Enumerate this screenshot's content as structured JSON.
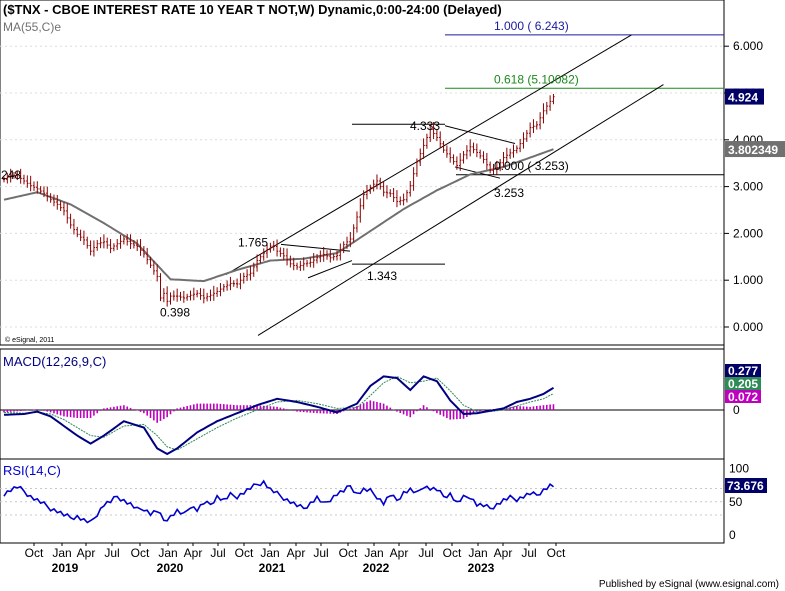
{
  "chart_data": [
    {
      "type": "candlestick",
      "panel": "price",
      "title": "($TNX - CBOE INTEREST RATE 10 YEAR T NOT,W) Dynamic,0:00-24:00 (Delayed)",
      "indicator_label": "MA(55,C)e",
      "ylim": [
        -0.6,
        7.0
      ],
      "y_ticks": [
        "0.000",
        "1.000",
        "2.000",
        "3.000",
        "4.000",
        "5.000",
        "6.000"
      ],
      "price_path": [
        [
          0,
          3.15
        ],
        [
          2,
          3.24
        ],
        [
          4,
          3.23
        ],
        [
          6,
          3.12
        ],
        [
          8,
          3.02
        ],
        [
          10,
          2.95
        ],
        [
          12,
          2.86
        ],
        [
          14,
          2.72
        ],
        [
          16,
          2.62
        ],
        [
          18,
          2.48
        ],
        [
          20,
          2.18
        ],
        [
          22,
          1.98
        ],
        [
          24,
          1.86
        ],
        [
          26,
          1.62
        ],
        [
          28,
          1.78
        ],
        [
          30,
          1.82
        ],
        [
          32,
          1.68
        ],
        [
          34,
          1.78
        ],
        [
          36,
          1.88
        ],
        [
          38,
          1.78
        ],
        [
          40,
          1.72
        ],
        [
          42,
          1.56
        ],
        [
          44,
          1.32
        ],
        [
          46,
          1.08
        ],
        [
          47,
          0.62
        ],
        [
          48,
          0.72
        ],
        [
          49,
          0.55
        ],
        [
          50,
          0.66
        ],
        [
          52,
          0.66
        ],
        [
          54,
          0.62
        ],
        [
          56,
          0.68
        ],
        [
          58,
          0.72
        ],
        [
          60,
          0.62
        ],
        [
          62,
          0.68
        ],
        [
          64,
          0.76
        ],
        [
          66,
          0.86
        ],
        [
          68,
          0.93
        ],
        [
          70,
          0.92
        ],
        [
          72,
          1.08
        ],
        [
          74,
          1.15
        ],
        [
          76,
          1.42
        ],
        [
          78,
          1.58
        ],
        [
          80,
          1.73
        ],
        [
          81,
          1.72
        ],
        [
          82,
          1.62
        ],
        [
          84,
          1.52
        ],
        [
          86,
          1.35
        ],
        [
          88,
          1.28
        ],
        [
          90,
          1.35
        ],
        [
          92,
          1.38
        ],
        [
          94,
          1.48
        ],
        [
          96,
          1.55
        ],
        [
          98,
          1.48
        ],
        [
          100,
          1.53
        ],
        [
          102,
          1.76
        ],
        [
          104,
          1.88
        ],
        [
          106,
          2.35
        ],
        [
          108,
          2.83
        ],
        [
          110,
          2.98
        ],
        [
          112,
          3.12
        ],
        [
          114,
          2.88
        ],
        [
          116,
          2.85
        ],
        [
          118,
          2.68
        ],
        [
          120,
          2.72
        ],
        [
          122,
          3.02
        ],
        [
          124,
          3.53
        ],
        [
          126,
          3.88
        ],
        [
          128,
          4.22
        ],
        [
          130,
          4.05
        ],
        [
          132,
          3.78
        ],
        [
          134,
          3.62
        ],
        [
          136,
          3.45
        ],
        [
          138,
          3.68
        ],
        [
          140,
          3.85
        ],
        [
          142,
          3.73
        ],
        [
          144,
          3.58
        ],
        [
          146,
          3.35
        ],
        [
          148,
          3.4
        ],
        [
          150,
          3.62
        ],
        [
          152,
          3.72
        ],
        [
          154,
          3.82
        ],
        [
          156,
          4.02
        ],
        [
          158,
          4.26
        ],
        [
          160,
          4.32
        ],
        [
          162,
          4.62
        ],
        [
          164,
          4.82
        ],
        [
          165,
          4.92
        ]
      ],
      "series": [
        {
          "name": "MA(55,C)e",
          "values": [
            [
              0,
              2.72
            ],
            [
              10,
              2.88
            ],
            [
              20,
              2.62
            ],
            [
              30,
              2.22
            ],
            [
              40,
              1.78
            ],
            [
              50,
              1.02
            ],
            [
              60,
              0.98
            ],
            [
              70,
              1.22
            ],
            [
              80,
              1.42
            ],
            [
              90,
              1.46
            ],
            [
              100,
              1.58
            ],
            [
              110,
              2.05
            ],
            [
              120,
              2.52
            ],
            [
              130,
              2.92
            ],
            [
              140,
              3.26
            ],
            [
              150,
              3.42
            ],
            [
              158,
              3.62
            ],
            [
              165,
              3.8
            ]
          ]
        }
      ],
      "annotations": [
        {
          "label": "1.000 ( 6.243)",
          "y": 6.243,
          "color": "#1a1aa0"
        },
        {
          "label": "0.618 (5.10082)",
          "y": 5.10082,
          "color": "#1a8a1a"
        },
        {
          "label": "0.000 ( 3.253)",
          "y": 3.253,
          "color": "#000000"
        },
        {
          "label": "4.333",
          "y": 4.333
        },
        {
          "label": "3.253",
          "y": 3.253
        },
        {
          "label": "1.765",
          "y": 1.765
        },
        {
          "label": "1.343",
          "y": 1.343
        },
        {
          "label": "0.398",
          "y": 0.398
        },
        {
          "label": "248",
          "y": 3.248
        }
      ],
      "value_boxes": [
        {
          "label": "4.924",
          "y": 4.924,
          "bg": "#000066",
          "fg": "#ffffff"
        },
        {
          "label": "3.802349",
          "y": 3.802349,
          "bg": "#707070",
          "fg": "#ffffff"
        }
      ],
      "credit": "© eSignal, 2011"
    },
    {
      "type": "line",
      "panel": "macd",
      "title": "MACD(12,26,9,C)",
      "ylim": [
        -0.65,
        0.95
      ],
      "macd": [
        [
          0,
          -0.06
        ],
        [
          6,
          -0.05
        ],
        [
          10,
          -0.02
        ],
        [
          14,
          -0.08
        ],
        [
          18,
          -0.2
        ],
        [
          22,
          -0.32
        ],
        [
          26,
          -0.42
        ],
        [
          30,
          -0.32
        ],
        [
          36,
          -0.14
        ],
        [
          42,
          -0.22
        ],
        [
          46,
          -0.48
        ],
        [
          49,
          -0.55
        ],
        [
          52,
          -0.48
        ],
        [
          58,
          -0.28
        ],
        [
          64,
          -0.14
        ],
        [
          70,
          -0.04
        ],
        [
          76,
          0.06
        ],
        [
          82,
          0.14
        ],
        [
          88,
          0.1
        ],
        [
          94,
          0.04
        ],
        [
          100,
          -0.03
        ],
        [
          106,
          0.08
        ],
        [
          110,
          0.3
        ],
        [
          114,
          0.42
        ],
        [
          118,
          0.4
        ],
        [
          122,
          0.25
        ],
        [
          126,
          0.42
        ],
        [
          130,
          0.36
        ],
        [
          134,
          0.12
        ],
        [
          138,
          -0.05
        ],
        [
          142,
          -0.04
        ],
        [
          146,
          -0.01
        ],
        [
          150,
          0.02
        ],
        [
          154,
          0.1
        ],
        [
          158,
          0.14
        ],
        [
          162,
          0.2
        ],
        [
          165,
          0.277
        ]
      ],
      "signal": [
        [
          0,
          -0.03
        ],
        [
          6,
          -0.04
        ],
        [
          10,
          -0.03
        ],
        [
          14,
          -0.05
        ],
        [
          18,
          -0.12
        ],
        [
          22,
          -0.22
        ],
        [
          26,
          -0.32
        ],
        [
          30,
          -0.34
        ],
        [
          36,
          -0.2
        ],
        [
          42,
          -0.18
        ],
        [
          46,
          -0.32
        ],
        [
          49,
          -0.46
        ],
        [
          52,
          -0.5
        ],
        [
          58,
          -0.36
        ],
        [
          64,
          -0.22
        ],
        [
          70,
          -0.1
        ],
        [
          76,
          0.0
        ],
        [
          82,
          0.1
        ],
        [
          88,
          0.12
        ],
        [
          94,
          0.08
        ],
        [
          100,
          0.02
        ],
        [
          106,
          0.03
        ],
        [
          110,
          0.18
        ],
        [
          114,
          0.34
        ],
        [
          118,
          0.42
        ],
        [
          122,
          0.34
        ],
        [
          126,
          0.36
        ],
        [
          130,
          0.4
        ],
        [
          134,
          0.24
        ],
        [
          138,
          0.06
        ],
        [
          142,
          -0.02
        ],
        [
          146,
          -0.02
        ],
        [
          150,
          0.0
        ],
        [
          154,
          0.05
        ],
        [
          158,
          0.1
        ],
        [
          162,
          0.14
        ],
        [
          165,
          0.205
        ]
      ],
      "hist_value": "0.072",
      "value_boxes": [
        {
          "label": "0.277",
          "bg": "#000066",
          "fg": "#ffffff"
        },
        {
          "label": "0.205",
          "bg": "#2e8b57",
          "fg": "#ffffff"
        },
        {
          "label": "0.072",
          "bg": "#c000c0",
          "fg": "#ffffff"
        }
      ],
      "y_ticks": [
        "0"
      ]
    },
    {
      "type": "line",
      "panel": "rsi",
      "title": "RSI(14,C)",
      "ylim": [
        0,
        100
      ],
      "y_ticks": [
        "100",
        "50",
        "0"
      ],
      "values": [
        [
          0,
          62
        ],
        [
          2,
          68
        ],
        [
          4,
          72
        ],
        [
          6,
          66
        ],
        [
          8,
          58
        ],
        [
          10,
          52
        ],
        [
          12,
          46
        ],
        [
          14,
          40
        ],
        [
          16,
          36
        ],
        [
          18,
          30
        ],
        [
          20,
          26
        ],
        [
          22,
          28
        ],
        [
          24,
          22
        ],
        [
          26,
          18
        ],
        [
          28,
          32
        ],
        [
          30,
          46
        ],
        [
          32,
          50
        ],
        [
          34,
          58
        ],
        [
          36,
          52
        ],
        [
          38,
          46
        ],
        [
          40,
          38
        ],
        [
          42,
          40
        ],
        [
          44,
          32
        ],
        [
          46,
          36
        ],
        [
          48,
          22
        ],
        [
          50,
          28
        ],
        [
          52,
          36
        ],
        [
          54,
          30
        ],
        [
          56,
          44
        ],
        [
          58,
          38
        ],
        [
          60,
          48
        ],
        [
          62,
          46
        ],
        [
          64,
          58
        ],
        [
          66,
          52
        ],
        [
          68,
          60
        ],
        [
          70,
          58
        ],
        [
          72,
          64
        ],
        [
          74,
          70
        ],
        [
          76,
          76
        ],
        [
          78,
          80
        ],
        [
          80,
          68
        ],
        [
          82,
          62
        ],
        [
          84,
          56
        ],
        [
          86,
          50
        ],
        [
          88,
          44
        ],
        [
          90,
          40
        ],
        [
          92,
          48
        ],
        [
          94,
          56
        ],
        [
          96,
          46
        ],
        [
          98,
          54
        ],
        [
          100,
          62
        ],
        [
          102,
          66
        ],
        [
          104,
          74
        ],
        [
          106,
          62
        ],
        [
          108,
          68
        ],
        [
          110,
          66
        ],
        [
          112,
          58
        ],
        [
          114,
          48
        ],
        [
          116,
          60
        ],
        [
          118,
          52
        ],
        [
          120,
          64
        ],
        [
          122,
          68
        ],
        [
          124,
          62
        ],
        [
          126,
          74
        ],
        [
          128,
          70
        ],
        [
          130,
          68
        ],
        [
          132,
          58
        ],
        [
          134,
          62
        ],
        [
          136,
          48
        ],
        [
          138,
          56
        ],
        [
          140,
          58
        ],
        [
          142,
          46
        ],
        [
          144,
          44
        ],
        [
          146,
          40
        ],
        [
          148,
          46
        ],
        [
          150,
          52
        ],
        [
          152,
          56
        ],
        [
          154,
          54
        ],
        [
          156,
          58
        ],
        [
          158,
          62
        ],
        [
          160,
          60
        ],
        [
          162,
          68
        ],
        [
          164,
          74
        ],
        [
          165,
          73.676
        ]
      ],
      "value_box": {
        "label": "73.676",
        "bg": "#000066",
        "fg": "#ffffff"
      }
    }
  ],
  "x_axis": {
    "month_labels": [
      "Oct",
      "Jan",
      "Apr",
      "Jul",
      "Oct",
      "Jan",
      "Apr",
      "Jul",
      "Oct",
      "Jan",
      "Apr",
      "Jul",
      "Oct",
      "Jan",
      "Apr",
      "Jul",
      "Oct",
      "Jan",
      "Apr",
      "Jul",
      "Oct"
    ],
    "year_labels": [
      "2019",
      "2020",
      "2021",
      "2022",
      "2023"
    ]
  },
  "footer": "Published by eSignal (www.esignal.com)",
  "colors": {
    "price": "#8b0000",
    "ma": "#707070",
    "macd": "#000080",
    "signal": "#2e8b57",
    "histogram": "#c000c0",
    "rsi": "#0000cc"
  }
}
